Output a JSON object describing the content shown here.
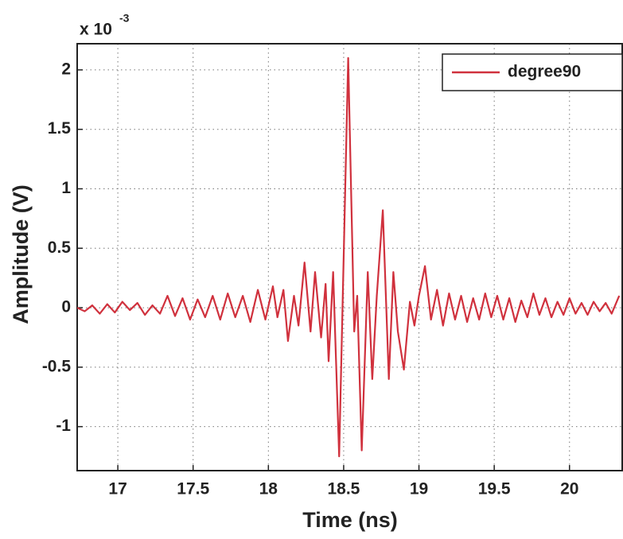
{
  "chart_data": {
    "type": "line",
    "x_label": "Time (ns)",
    "y_label": "Amplitude (V)",
    "y_multiplier": "x 10",
    "y_multiplier_exponent": "-3",
    "x": [
      16.73,
      16.78,
      16.83,
      16.88,
      16.93,
      16.98,
      17.03,
      17.08,
      17.13,
      17.18,
      17.23,
      17.28,
      17.33,
      17.38,
      17.43,
      17.48,
      17.53,
      17.58,
      17.63,
      17.68,
      17.73,
      17.78,
      17.83,
      17.88,
      17.93,
      17.98,
      18.03,
      18.06,
      18.1,
      18.13,
      18.17,
      18.2,
      18.24,
      18.28,
      18.31,
      18.35,
      18.38,
      18.4,
      18.43,
      18.47,
      18.53,
      18.57,
      18.59,
      18.62,
      18.66,
      18.69,
      18.72,
      18.76,
      18.8,
      18.83,
      18.86,
      18.9,
      18.94,
      18.97,
      19.0,
      19.04,
      19.08,
      19.12,
      19.16,
      19.2,
      19.24,
      19.28,
      19.32,
      19.36,
      19.4,
      19.44,
      19.48,
      19.52,
      19.56,
      19.6,
      19.64,
      19.68,
      19.72,
      19.76,
      19.8,
      19.84,
      19.88,
      19.92,
      19.96,
      20.0,
      20.04,
      20.08,
      20.12,
      20.16,
      20.2,
      20.24,
      20.28,
      20.33
    ],
    "series": [
      {
        "name": "degree90",
        "color": "#d0313d",
        "values": [
          0.0,
          -0.03,
          0.02,
          -0.05,
          0.03,
          -0.04,
          0.05,
          -0.02,
          0.04,
          -0.06,
          0.02,
          -0.05,
          0.1,
          -0.07,
          0.08,
          -0.1,
          0.07,
          -0.08,
          0.1,
          -0.1,
          0.12,
          -0.08,
          0.1,
          -0.12,
          0.15,
          -0.1,
          0.18,
          -0.08,
          0.15,
          -0.28,
          0.1,
          -0.15,
          0.38,
          -0.2,
          0.3,
          -0.25,
          0.2,
          -0.45,
          0.3,
          -1.25,
          2.1,
          -0.2,
          0.1,
          -1.2,
          0.3,
          -0.6,
          0.1,
          0.82,
          -0.6,
          0.3,
          -0.2,
          -0.52,
          0.05,
          -0.15,
          0.1,
          0.35,
          -0.1,
          0.15,
          -0.15,
          0.12,
          -0.1,
          0.1,
          -0.12,
          0.08,
          -0.1,
          0.12,
          -0.08,
          0.1,
          -0.1,
          0.08,
          -0.12,
          0.06,
          -0.08,
          0.12,
          -0.06,
          0.08,
          -0.08,
          0.05,
          -0.06,
          0.08,
          -0.05,
          0.04,
          -0.06,
          0.05,
          -0.03,
          0.04,
          -0.05,
          0.1
        ]
      }
    ],
    "xlim": [
      16.73,
      20.35
    ],
    "ylim": [
      -1.37,
      2.22
    ],
    "xticks": [
      17,
      17.5,
      18,
      18.5,
      19,
      19.5,
      20
    ],
    "yticks": [
      -1,
      -0.5,
      0,
      0.5,
      1,
      1.5,
      2
    ],
    "grid": true,
    "legend": "upper right"
  }
}
